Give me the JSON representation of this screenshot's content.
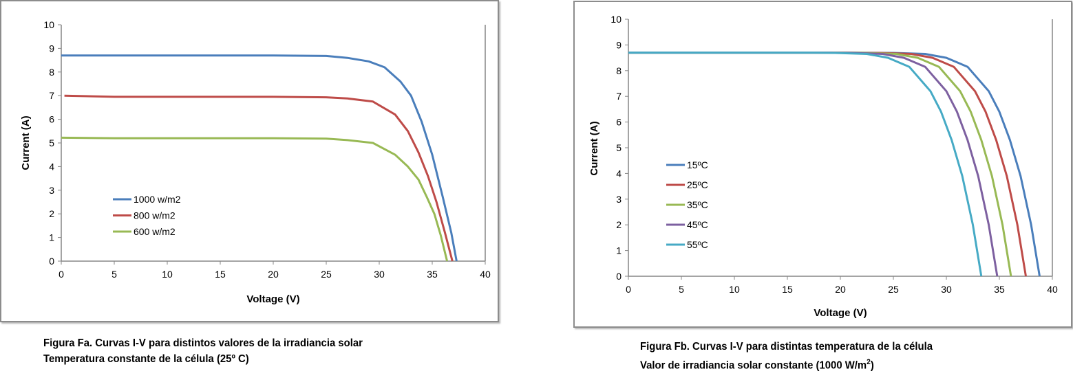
{
  "chart_data": [
    {
      "type": "line",
      "xlabel": "Voltage (V)",
      "ylabel": "Current (A)",
      "xlim": [
        0,
        40
      ],
      "ylim": [
        0,
        10
      ],
      "xticks": [
        "0",
        "5",
        "10",
        "15",
        "20",
        "25",
        "30",
        "35",
        "40"
      ],
      "yticks": [
        "0",
        "1",
        "2",
        "3",
        "4",
        "5",
        "6",
        "7",
        "8",
        "9",
        "10"
      ],
      "grid": false,
      "legend_position": "lower-left",
      "series": [
        {
          "name": "1000 w/m2",
          "color": "#4a7ebb",
          "x": [
            0,
            5,
            10,
            15,
            20,
            25,
            27,
            29,
            30.5,
            32,
            33,
            34,
            35,
            36,
            36.8,
            37.3
          ],
          "y": [
            8.7,
            8.7,
            8.7,
            8.7,
            8.7,
            8.68,
            8.6,
            8.45,
            8.2,
            7.6,
            7.0,
            5.9,
            4.5,
            2.7,
            1.2,
            0
          ]
        },
        {
          "name": "800 w/m2",
          "color": "#be4b48",
          "x": [
            0.3,
            5,
            10,
            15,
            20,
            25,
            27,
            29.4,
            31.5,
            32.7,
            33.7,
            34.6,
            35.4,
            36.2,
            36.9
          ],
          "y": [
            7.0,
            6.95,
            6.95,
            6.95,
            6.95,
            6.93,
            6.88,
            6.75,
            6.2,
            5.5,
            4.6,
            3.6,
            2.5,
            1.2,
            0
          ]
        },
        {
          "name": "600 w/m2",
          "color": "#98b954",
          "x": [
            0,
            5,
            10,
            15,
            20,
            25,
            27,
            29.4,
            31.5,
            32.7,
            33.7,
            34.5,
            35.2,
            35.8,
            36.4
          ],
          "y": [
            5.22,
            5.2,
            5.2,
            5.2,
            5.2,
            5.18,
            5.12,
            5.0,
            4.5,
            4.0,
            3.45,
            2.7,
            2.0,
            1.1,
            0
          ]
        }
      ]
    },
    {
      "type": "line",
      "xlabel": "Voltage (V)",
      "ylabel": "Current (A)",
      "xlim": [
        0,
        40
      ],
      "ylim": [
        0,
        10
      ],
      "xticks": [
        "0",
        "5",
        "10",
        "15",
        "20",
        "25",
        "30",
        "35",
        "40"
      ],
      "yticks": [
        "0",
        "1",
        "2",
        "3",
        "4",
        "5",
        "6",
        "7",
        "8",
        "9",
        "10"
      ],
      "grid": false,
      "legend_position": "lower-left",
      "series": [
        {
          "name": "15ºC",
          "color": "#4a7ebb",
          "x": [
            0,
            5,
            10,
            15,
            20,
            25,
            28,
            30,
            32,
            34,
            35,
            36,
            37,
            38,
            38.8
          ],
          "y": [
            8.7,
            8.7,
            8.7,
            8.7,
            8.7,
            8.69,
            8.65,
            8.5,
            8.15,
            7.2,
            6.4,
            5.3,
            3.9,
            2.0,
            0
          ]
        },
        {
          "name": "25ºC",
          "color": "#be4b48",
          "x": [
            0,
            5,
            10,
            15,
            20,
            23.7,
            26.7,
            28.7,
            30.7,
            32.7,
            33.7,
            34.7,
            35.7,
            36.7,
            37.5
          ],
          "y": [
            8.7,
            8.7,
            8.7,
            8.7,
            8.7,
            8.69,
            8.65,
            8.5,
            8.15,
            7.2,
            6.4,
            5.3,
            3.9,
            2.0,
            0
          ]
        },
        {
          "name": "35ºC",
          "color": "#98b954",
          "x": [
            0,
            5,
            10,
            15,
            20,
            22.3,
            25.3,
            27.3,
            29.3,
            31.3,
            32.3,
            33.3,
            34.3,
            35.3,
            36.1
          ],
          "y": [
            8.7,
            8.7,
            8.7,
            8.7,
            8.7,
            8.69,
            8.65,
            8.5,
            8.15,
            7.2,
            6.4,
            5.3,
            3.9,
            2.0,
            0
          ]
        },
        {
          "name": "45ºC",
          "color": "#7d60a0",
          "x": [
            0,
            5,
            10,
            15,
            19,
            21,
            24,
            26,
            28,
            30,
            31,
            32,
            33,
            34,
            34.8
          ],
          "y": [
            8.7,
            8.7,
            8.7,
            8.7,
            8.7,
            8.69,
            8.65,
            8.5,
            8.15,
            7.2,
            6.4,
            5.3,
            3.9,
            2.0,
            0
          ]
        },
        {
          "name": "55ºC",
          "color": "#46aac5",
          "x": [
            0,
            5,
            10,
            15,
            17.5,
            19.5,
            22.5,
            24.5,
            26.5,
            28.5,
            29.5,
            30.5,
            31.5,
            32.5,
            33.3
          ],
          "y": [
            8.7,
            8.7,
            8.7,
            8.7,
            8.7,
            8.69,
            8.65,
            8.5,
            8.15,
            7.2,
            6.4,
            5.3,
            3.9,
            2.0,
            0
          ]
        }
      ]
    }
  ],
  "captions": {
    "a": {
      "line1": "Figura Fa.  Curvas I-V para distintos valores de la  irradiancia solar",
      "line2": "Temperatura constante de la célula (25º C)"
    },
    "b": {
      "line1": "Figura Fb. Curvas I-V para distintas temperatura de la célula",
      "line2": "Valor de irradiancia solar  constante (1000 W/m",
      "sup": "2",
      "close": ")"
    }
  }
}
